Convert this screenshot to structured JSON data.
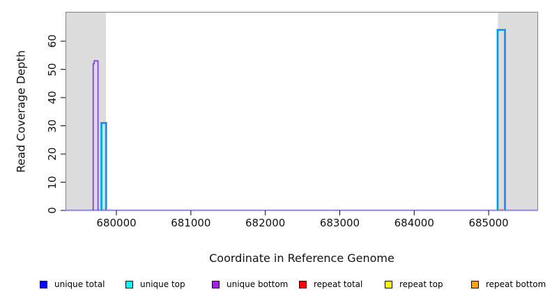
{
  "chart_data": {
    "type": "line",
    "title": "",
    "xlabel": "Coordinate in Reference Genome",
    "ylabel": "Read Coverage Depth",
    "xlim": [
      679316,
      685664
    ],
    "ylim": [
      0,
      70.4
    ],
    "x_ticks": [
      680000,
      681000,
      682000,
      683000,
      684000,
      685000
    ],
    "y_ticks": [
      0,
      10,
      20,
      30,
      40,
      50,
      60
    ],
    "grid": false,
    "legend_position": "bottom",
    "background_color": "#ffffff",
    "shaded_region_color": "#dcdcdc",
    "shaded_regions": [
      {
        "x0": 679316,
        "x1": 679859
      },
      {
        "x0": 685124,
        "x1": 685664
      }
    ],
    "baseline": {
      "value": 0,
      "color": "#9184f4",
      "width": 2
    },
    "series": [
      {
        "name": "repeat top",
        "legend_color": "#ffff00",
        "line_color": "#5ec45e",
        "width": 1.7,
        "segments": [
          [
            [
              679658,
              0.2
            ],
            [
              679703,
              0.2
            ]
          ]
        ]
      },
      {
        "name": "repeat total",
        "legend_color": "#ff0000",
        "line_color": "#ff6a5e",
        "width": 1.7,
        "segments": [
          [
            [
              679795,
              0.2
            ],
            [
              679854,
              0.2
            ]
          ],
          [
            [
              685133,
              0.2
            ],
            [
              685197,
              0.2
            ]
          ]
        ]
      },
      {
        "name": "unique top",
        "legend_color": "#00ffff",
        "line_color": "#00dcee",
        "width": 3,
        "segments": [
          [
            [
              679799,
              0
            ],
            [
              679799,
              31
            ],
            [
              679861,
              31
            ],
            [
              679861,
              0
            ]
          ],
          [
            [
              685121,
              0
            ],
            [
              685121,
              64
            ],
            [
              685219,
              64
            ],
            [
              685219,
              0
            ]
          ]
        ]
      },
      {
        "name": "unique total",
        "legend_color": "#0000ff",
        "line_color": "#1e7cf2",
        "width": 1.7,
        "segments": [
          [
            [
              679798,
              0
            ],
            [
              679798,
              31
            ],
            [
              679862,
              31
            ],
            [
              679862,
              0
            ]
          ],
          [
            [
              685120,
              0
            ],
            [
              685120,
              64
            ],
            [
              685220,
              64
            ],
            [
              685220,
              0
            ]
          ]
        ]
      },
      {
        "name": "unique bottom",
        "legend_color": "#a020f0",
        "line_color": "#8836ee",
        "width": 1.7,
        "segments": [
          [
            [
              679688,
              0
            ],
            [
              679688,
              52
            ],
            [
              679702,
              52
            ],
            [
              679702,
              53
            ],
            [
              679752,
              53
            ],
            [
              679752,
              0
            ]
          ]
        ]
      },
      {
        "name": "repeat bottom",
        "legend_color": "#ffa500",
        "line_color": "#ffa500",
        "width": 1.5,
        "segments": []
      }
    ],
    "legend": [
      {
        "label": "unique total",
        "color": "#0000ff"
      },
      {
        "label": "unique top",
        "color": "#00ffff"
      },
      {
        "label": "unique bottom",
        "color": "#a020f0"
      },
      {
        "label": "repeat total",
        "color": "#ff0000"
      },
      {
        "label": "repeat top",
        "color": "#ffff00"
      },
      {
        "label": "repeat bottom",
        "color": "#ffa500"
      }
    ]
  }
}
